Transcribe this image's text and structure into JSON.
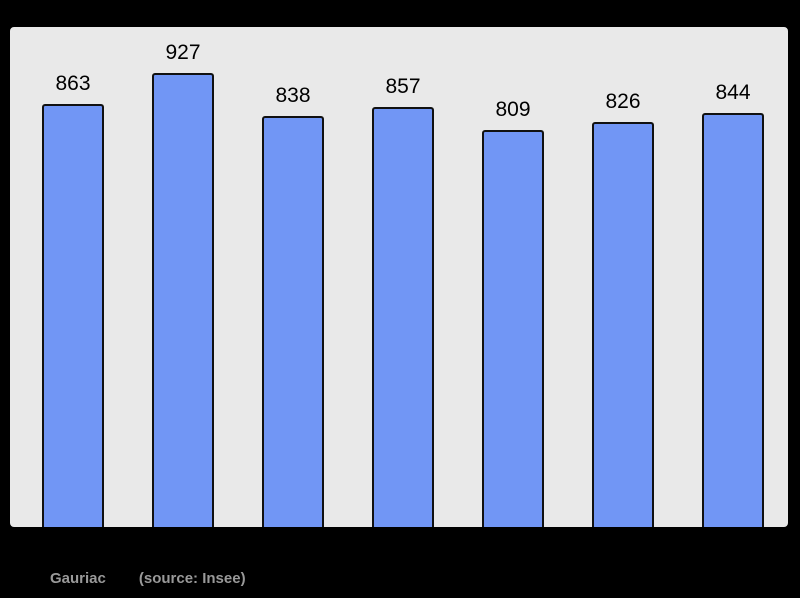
{
  "caption": {
    "commune": "Gauriac",
    "source": "(source: Insee)"
  },
  "colors": {
    "page_background": "#000000",
    "panel_fill": "#e9e9e9",
    "panel_border": "#000000",
    "bar_fill": "#7196f5",
    "bar_border": "#111111",
    "value_label_color": "#000000",
    "caption_color": "#999999"
  },
  "chart_data": {
    "type": "bar",
    "values": [
      863,
      927,
      838,
      857,
      809,
      826,
      844
    ],
    "data_labels": [
      863,
      927,
      838,
      857,
      809,
      826,
      844
    ],
    "title": "",
    "xlabel": "",
    "ylabel": "",
    "ylim": [
      0,
      1020
    ],
    "grid": false,
    "legend": false,
    "x_tick_labels": []
  }
}
